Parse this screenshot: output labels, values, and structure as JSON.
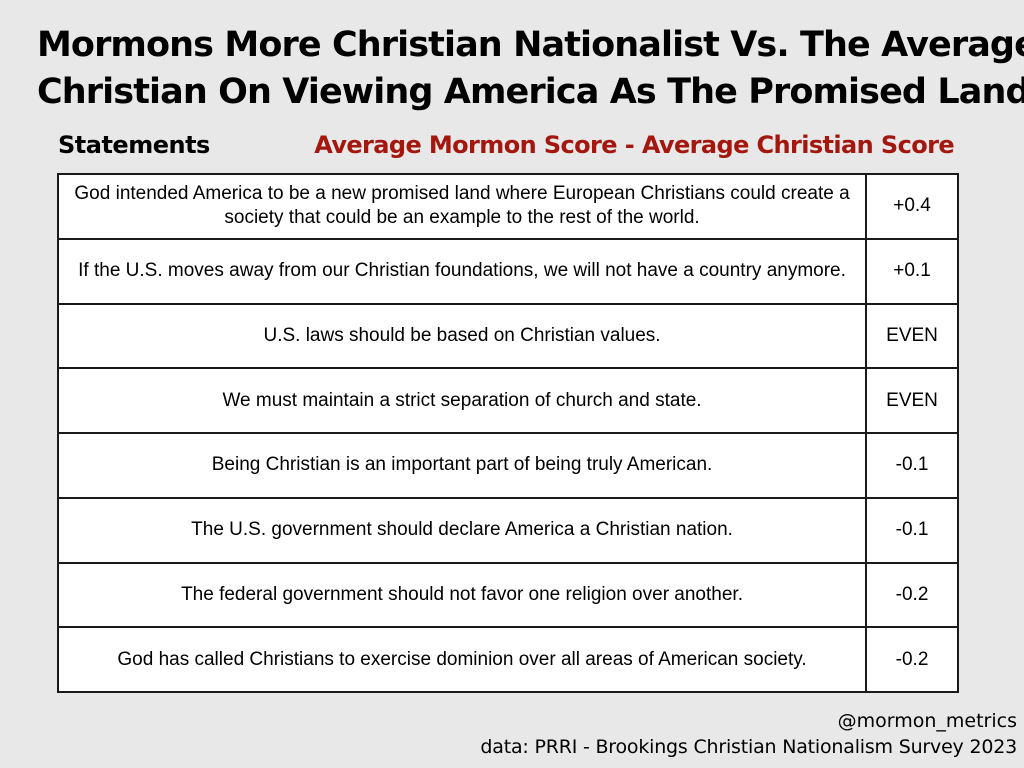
{
  "title_lines": [
    "Mormons More Christian Nationalist Vs. The Average",
    "Christian On Viewing America As The Promised Land"
  ],
  "chart_data": {
    "type": "table",
    "title": "Mormons More Christian Nationalist Vs. The Average Christian On Viewing America As The Promised Land",
    "columns": [
      "Statements",
      "Average Mormon Score - Average Christian Score"
    ],
    "rows": [
      {
        "statement": "God intended America to be a new promised land where European Christians could create a society that could be an example to the rest of the world.",
        "score": "+0.4"
      },
      {
        "statement": "If the U.S. moves away from our Christian foundations, we will not have a country anymore.",
        "score": "+0.1"
      },
      {
        "statement": "U.S. laws should be based on Christian values.",
        "score": "EVEN"
      },
      {
        "statement": "We must maintain a strict separation of church and state.",
        "score": "EVEN"
      },
      {
        "statement": "Being Christian is an important part of being truly American.",
        "score": "-0.1"
      },
      {
        "statement": "The U.S. government should declare America a Christian nation.",
        "score": "-0.1"
      },
      {
        "statement": "The federal government should not favor one religion over another.",
        "score": "-0.2"
      },
      {
        "statement": "God has called Christians to exercise dominion over all areas of American society.",
        "score": "-0.2"
      }
    ]
  },
  "footer": {
    "handle": "@mormon_metrics",
    "source": "data: PRRI - Brookings Christian Nationalism Survey 2023"
  },
  "colors": {
    "background": "#e8e8e8",
    "accent_red": "#a3170e",
    "table_background": "#ffffff",
    "border": "#1a1a1a"
  }
}
